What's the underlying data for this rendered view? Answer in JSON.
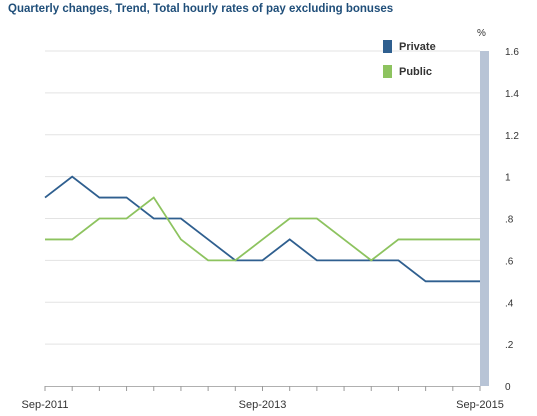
{
  "chart_data": {
    "type": "line",
    "title": "Quarterly changes, Trend, Total hourly rates of pay excluding bonuses",
    "ylabel": "%",
    "ylim": [
      0,
      1.6
    ],
    "y_ticks": [
      "0",
      ".2",
      ".4",
      ".6",
      ".8",
      "1",
      "1.2",
      "1.4",
      "1.6"
    ],
    "y_tick_values": [
      0,
      0.2,
      0.4,
      0.6,
      0.8,
      1.0,
      1.2,
      1.4,
      1.6
    ],
    "x_tick_labels": [
      "Sep-2011",
      "Sep-2013",
      "Sep-2015"
    ],
    "x": [
      "Sep-2011",
      "Dec-2011",
      "Mar-2012",
      "Jun-2012",
      "Sep-2012",
      "Dec-2012",
      "Mar-2013",
      "Jun-2013",
      "Sep-2013",
      "Dec-2013",
      "Mar-2014",
      "Jun-2014",
      "Sep-2014",
      "Dec-2014",
      "Mar-2015",
      "Jun-2015",
      "Sep-2015"
    ],
    "series": [
      {
        "name": "Private",
        "color": "#2f5f8f",
        "values": [
          0.9,
          1.0,
          0.9,
          0.9,
          0.8,
          0.8,
          0.7,
          0.6,
          0.6,
          0.7,
          0.6,
          0.6,
          0.6,
          0.6,
          0.5,
          0.5,
          0.5
        ]
      },
      {
        "name": "Public",
        "color": "#8dc35f",
        "values": [
          0.7,
          0.7,
          0.8,
          0.8,
          0.9,
          0.7,
          0.6,
          0.6,
          0.7,
          0.8,
          0.8,
          0.7,
          0.6,
          0.7,
          0.7,
          0.7,
          0.7
        ]
      }
    ],
    "grid": true,
    "legend_position": "top-right",
    "axis_bar_color": "#b8c4d6"
  }
}
